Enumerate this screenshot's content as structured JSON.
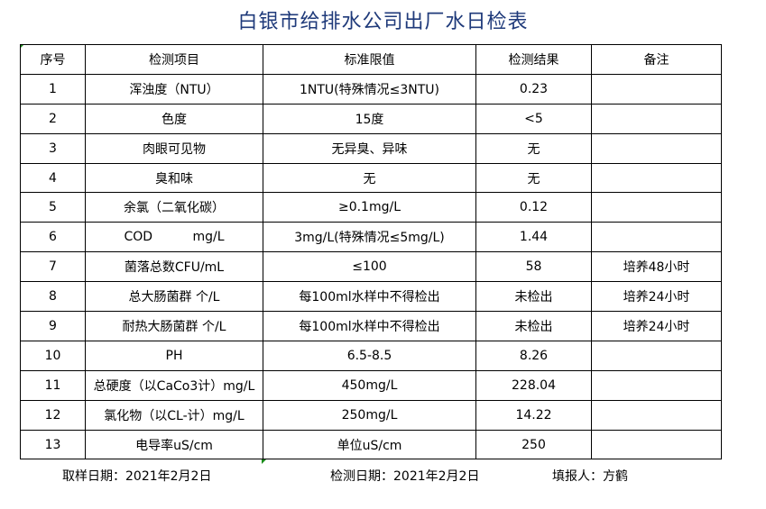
{
  "title": "白银市给排水公司出厂水日检表",
  "table": {
    "headers": [
      "序号",
      "检测项目",
      "标准限值",
      "检测结果",
      "备注"
    ],
    "rows": [
      [
        "1",
        "浑浊度（NTU）",
        "1NTU(特殊情况≤3NTU)",
        "0.23",
        ""
      ],
      [
        "2",
        "色度",
        "15度",
        "<5",
        ""
      ],
      [
        "3",
        "肉眼可见物",
        "无异臭、异味",
        "无",
        ""
      ],
      [
        "4",
        "臭和味",
        "无",
        "无",
        ""
      ],
      [
        "5",
        "余氯（二氧化碳）",
        "≥0.1mg/L",
        "0.12",
        ""
      ],
      [
        "6",
        "COD          mg/L",
        "3mg/L(特殊情况≤5mg/L)",
        "1.44",
        ""
      ],
      [
        "7",
        "菌落总数CFU/mL",
        "≤100",
        "58",
        "培养48小时"
      ],
      [
        "8",
        "总大肠菌群 个/L",
        "每100ml水样中不得检出",
        "未检出",
        "培养24小时"
      ],
      [
        "9",
        "耐热大肠菌群 个/L",
        "每100ml水样中不得检出",
        "未检出",
        "培养24小时"
      ],
      [
        "10",
        "PH",
        "6.5-8.5",
        "8.26",
        ""
      ],
      [
        "11",
        "总硬度（以CaCo3计）mg/L",
        "450mg/L",
        "228.04",
        ""
      ],
      [
        "12",
        "氯化物（以CL-计）mg/L",
        "250mg/L",
        "14.22",
        ""
      ],
      [
        "13",
        "电导率uS/cm",
        "单位uS/cm",
        "250",
        ""
      ]
    ]
  },
  "footer": {
    "sampling": "取样日期：2021年2月2日",
    "testing": "检测日期：2021年2月2日",
    "reporter": "填报人：方鹤"
  }
}
